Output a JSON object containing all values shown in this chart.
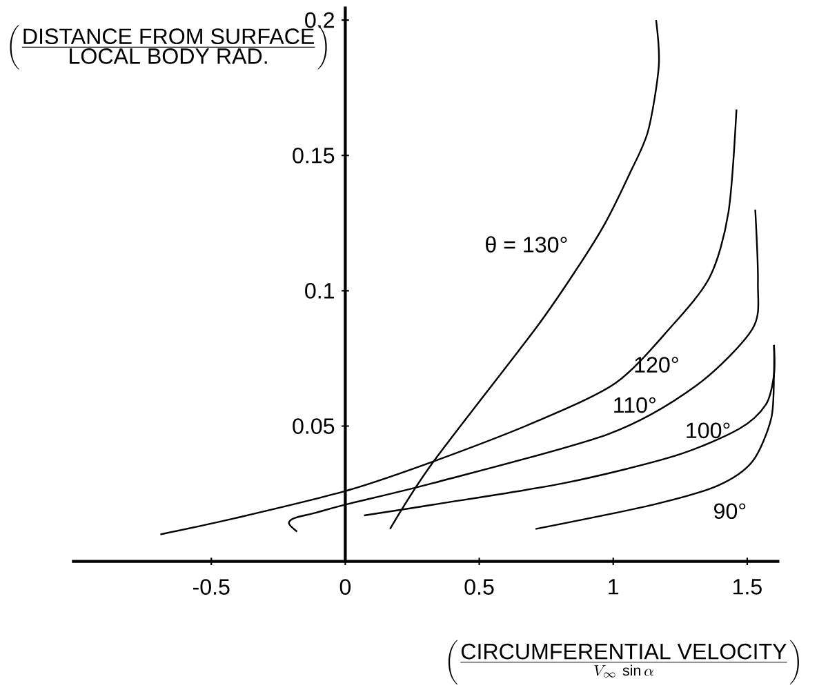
{
  "chart_data": {
    "type": "line",
    "xlabel": "\\left(\\frac{\\mbox{CIRCUMFERENTIAL VELOCITY}}{V_{\\infty}\\,\\sin\\alpha}\\right)",
    "ylabel": "\\left(\\frac{\\mbox{DISTANCE FROM SURFACE}}{\\mbox{LOCAL BODY RAD.}}\\right)",
    "xlim": [
      -1.02,
      1.62
    ],
    "ylim": [
      0,
      0.205
    ],
    "xticks": [
      -0.5,
      0,
      0.5,
      1,
      1.5
    ],
    "yticks": [
      0.05,
      0.1,
      0.15,
      0.2
    ],
    "grid": false,
    "marker": "none",
    "line_style": "solid",
    "series": [
      {
        "name": "θ = 130°",
        "color": "#000000",
        "x": [
          0.167,
          0.33,
          0.71,
          0.87,
          0.97,
          1.06,
          1.13,
          1.17,
          1.16
        ],
        "values": [
          0.012,
          0.037,
          0.086,
          0.109,
          0.125,
          0.143,
          0.159,
          0.183,
          0.2
        ]
      },
      {
        "name": "120°",
        "color": "#000000",
        "x": [
          -0.69,
          -0.41,
          0,
          0.33,
          0.72,
          1.01,
          1.21,
          1.36,
          1.43,
          1.46
        ],
        "values": [
          0.01,
          0.016,
          0.026,
          0.037,
          0.052,
          0.066,
          0.086,
          0.105,
          0.129,
          0.167
        ]
      },
      {
        "name": "110°",
        "color": "#000000",
        "x": [
          -0.18,
          -0.21,
          -0.19,
          -0.11,
          0,
          0.33,
          0.98,
          1.31,
          1.52,
          1.54,
          1.53
        ],
        "values": [
          0.011,
          0.014,
          0.016,
          0.018,
          0.021,
          0.029,
          0.047,
          0.065,
          0.086,
          0.103,
          0.13
        ]
      },
      {
        "name": "100°",
        "color": "#000000",
        "x": [
          0.07,
          0.33,
          0.82,
          1.23,
          1.47,
          1.57,
          1.6,
          1.6
        ],
        "values": [
          0.017,
          0.021,
          0.029,
          0.039,
          0.049,
          0.058,
          0.069,
          0.08
        ]
      },
      {
        "name": "90°",
        "color": "#000000",
        "x": [
          0.71,
          1.15,
          1.39,
          1.52,
          1.59,
          1.6,
          1.6
        ],
        "values": [
          0.012,
          0.021,
          0.028,
          0.037,
          0.053,
          0.07,
          0.08
        ]
      }
    ]
  }
}
